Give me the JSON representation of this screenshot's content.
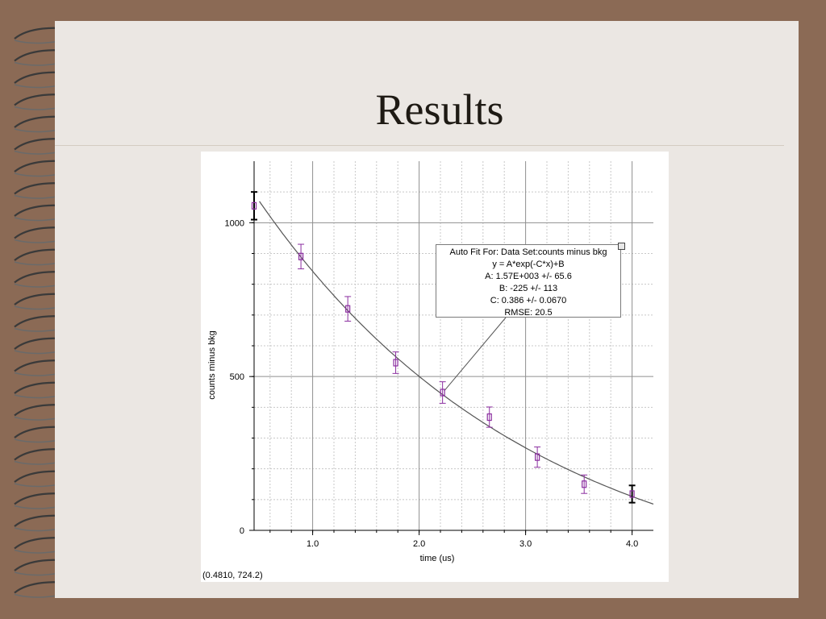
{
  "slide": {
    "title": "Results"
  },
  "fit_box": {
    "header": "Auto Fit For:  Data Set:counts minus bkg",
    "equation": "y = A*exp(-C*x)+B",
    "param_a": "A: 1.57E+003 +/- 65.6",
    "param_b": "B: -225 +/- 113",
    "param_c": "C: 0.386 +/- 0.0670",
    "rmse": "RMSE: 20.5"
  },
  "status": {
    "coordinate_readout": "(0.4810, 724.2)"
  },
  "colors": {
    "slide_background": "#ebe7e3",
    "frame": "#8b6a55",
    "data_points": "#8b2ea0",
    "fit_curve": "#555555",
    "axis_title": "#8b2ea0"
  },
  "icons": {
    "binding": "spiral-ring-icon",
    "close": "square-close-icon"
  },
  "chart_data": {
    "type": "scatter",
    "xlabel": "time (us)",
    "ylabel": "counts minus bkg",
    "xlim": [
      0.45,
      4.2
    ],
    "ylim": [
      0,
      1200
    ],
    "x_ticks": [
      "1.0",
      "2.0",
      "3.0",
      "4.0"
    ],
    "y_ticks": [
      "0",
      "500",
      "1000"
    ],
    "grid": true,
    "series": [
      {
        "x": [
          0.45,
          0.89,
          1.33,
          1.78,
          2.22,
          2.66,
          3.11,
          3.55,
          4.0
        ],
        "y": [
          1055,
          890,
          720,
          545,
          448,
          368,
          238,
          150,
          118
        ],
        "err": [
          45,
          40,
          40,
          35,
          35,
          33,
          33,
          30,
          28
        ],
        "bold_error_bar_points": [
          0,
          8
        ]
      }
    ],
    "fit": {
      "A": 1570,
      "B": -225,
      "C": 0.386,
      "x_range": [
        0.5,
        4.2
      ]
    },
    "annotation_anchor": {
      "x": 2.22,
      "y": 448
    }
  }
}
